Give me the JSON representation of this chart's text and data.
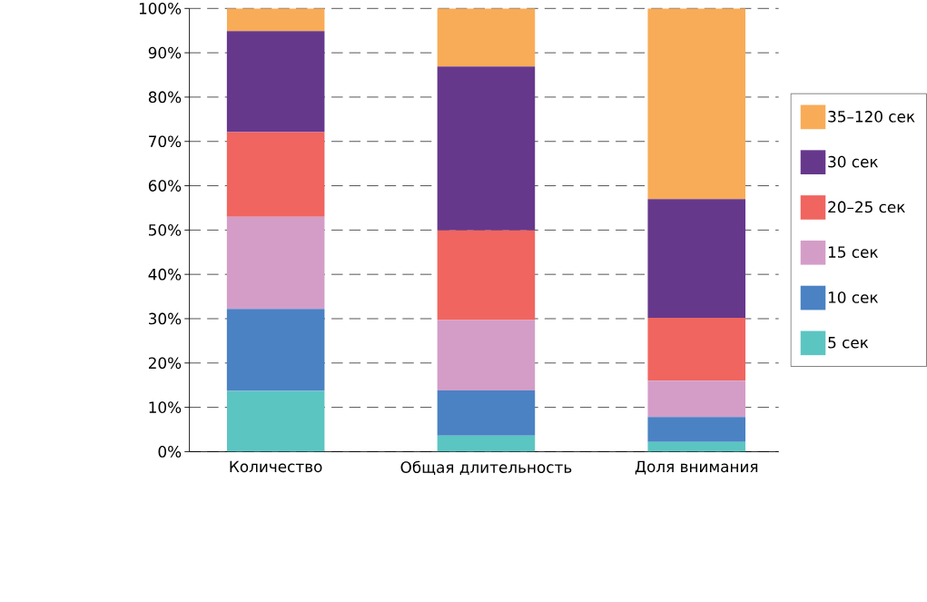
{
  "chart_data": {
    "type": "bar",
    "stacked": true,
    "categories": [
      "Количество",
      "Общая длительность",
      "Доля внимания"
    ],
    "series": [
      {
        "name": "5 сек",
        "color": "#5bc5c2",
        "values": [
          13.7,
          3.6,
          2.2
        ]
      },
      {
        "name": "10 сек",
        "color": "#4a82c4",
        "values": [
          18.5,
          10.2,
          5.6
        ]
      },
      {
        "name": "15 сек",
        "color": "#d39dc8",
        "values": [
          20.8,
          15.9,
          8.2
        ]
      },
      {
        "name": "20–25 сек",
        "color": "#f0655f",
        "values": [
          19.1,
          20.2,
          14.2
        ]
      },
      {
        "name": "30 сек",
        "color": "#66388c",
        "values": [
          22.8,
          37.0,
          26.8
        ]
      },
      {
        "name": "35–120 сек",
        "color": "#f9ac57",
        "values": [
          5.1,
          13.1,
          43.0
        ]
      }
    ],
    "ylim": [
      0,
      100
    ],
    "yticks": [
      {
        "value": 0,
        "label": "0%"
      },
      {
        "value": 10,
        "label": "10%"
      },
      {
        "value": 20,
        "label": "20%"
      },
      {
        "value": 30,
        "label": "30%"
      },
      {
        "value": 40,
        "label": "40%"
      },
      {
        "value": 50,
        "label": "50%"
      },
      {
        "value": 60,
        "label": "60%"
      },
      {
        "value": 70,
        "label": "70%"
      },
      {
        "value": 80,
        "label": "80%"
      },
      {
        "value": 90,
        "label": "90%"
      },
      {
        "value": 100,
        "label": "100%"
      }
    ],
    "grid": "y",
    "legend": "right"
  }
}
